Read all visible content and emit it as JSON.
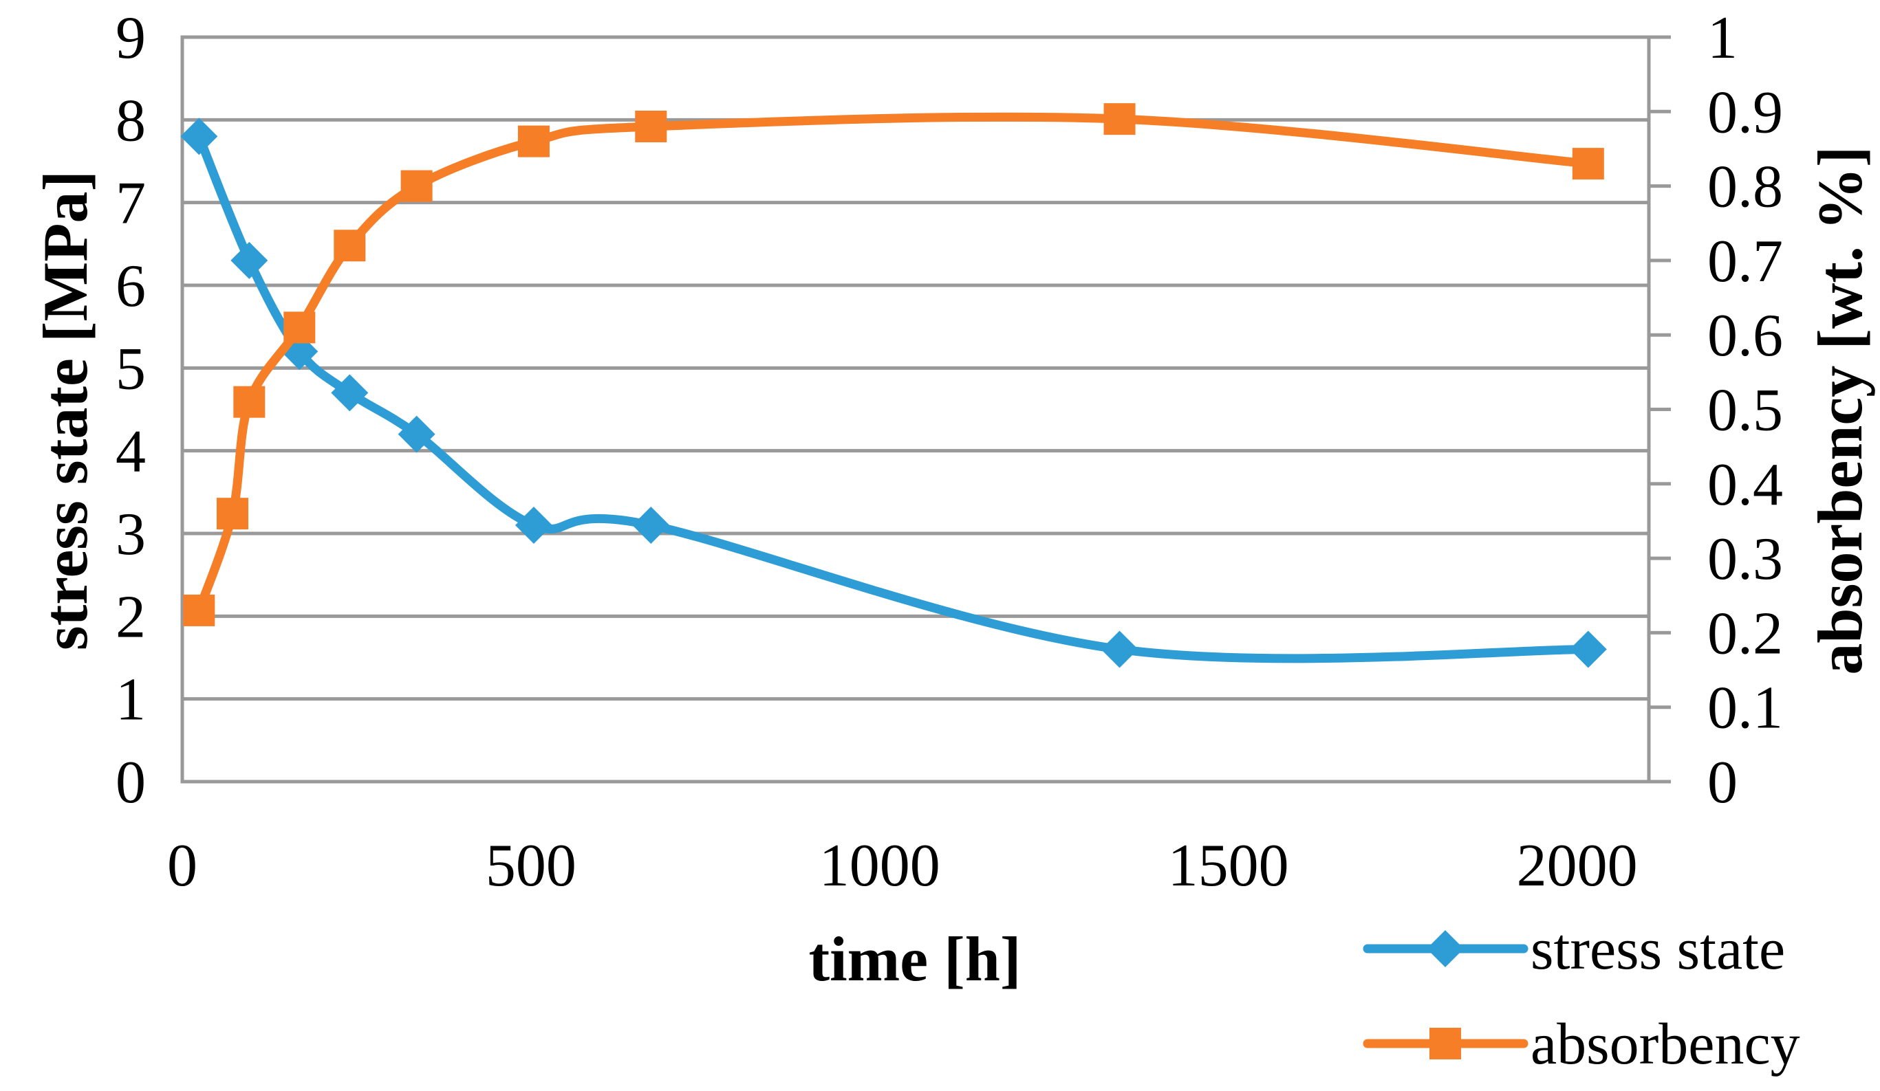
{
  "chart_data": {
    "type": "line",
    "title": "",
    "x_axis": {
      "label": "time [h]",
      "tick_labels": [
        "0",
        "500",
        "1000",
        "1500",
        "2000"
      ],
      "tick_values": [
        0,
        500,
        1000,
        1500,
        2000
      ],
      "range": [
        0,
        2103
      ],
      "gridlines": false
    },
    "y_axis_left": {
      "label": "stress state [MPa]",
      "tick_labels": [
        "0",
        "1",
        "2",
        "3",
        "4",
        "5",
        "6",
        "7",
        "8",
        "9"
      ],
      "tick_values": [
        0,
        1,
        2,
        3,
        4,
        5,
        6,
        7,
        8,
        9
      ],
      "range": [
        0,
        9
      ],
      "gridlines": true
    },
    "y_axis_right": {
      "label": "absorbency [wt. %]",
      "tick_labels": [
        "0",
        "0.1",
        "0.2",
        "0.3",
        "0.4",
        "0.5",
        "0.6",
        "0.7",
        "0.8",
        "0.9",
        "1"
      ],
      "tick_values": [
        0,
        0.1,
        0.2,
        0.3,
        0.4,
        0.5,
        0.6,
        0.7,
        0.8,
        0.9,
        1
      ],
      "range": [
        0,
        1
      ],
      "gridlines": false
    },
    "grid_on": true,
    "grid_color": "#999999",
    "axis_color": "#999999",
    "text_color": "#000000",
    "legend_position": "bottom-right",
    "series": [
      {
        "name": "stress state",
        "axis": "left",
        "color": "#2E9DD6",
        "marker": "diamond",
        "smooth": true,
        "x": [
          24,
          96,
          168,
          240,
          336,
          504,
          672,
          1344,
          2016
        ],
        "y": [
          7.8,
          6.3,
          5.2,
          4.7,
          4.2,
          3.1,
          3.1,
          1.6,
          1.6
        ]
      },
      {
        "name": "absorbency",
        "axis": "right",
        "color": "#F57E26",
        "marker": "square",
        "smooth": true,
        "x": [
          24,
          72,
          96,
          168,
          240,
          336,
          504,
          672,
          1344,
          2016
        ],
        "y": [
          0.23,
          0.36,
          0.51,
          0.61,
          0.72,
          0.8,
          0.86,
          0.88,
          0.89,
          0.83
        ]
      }
    ]
  }
}
